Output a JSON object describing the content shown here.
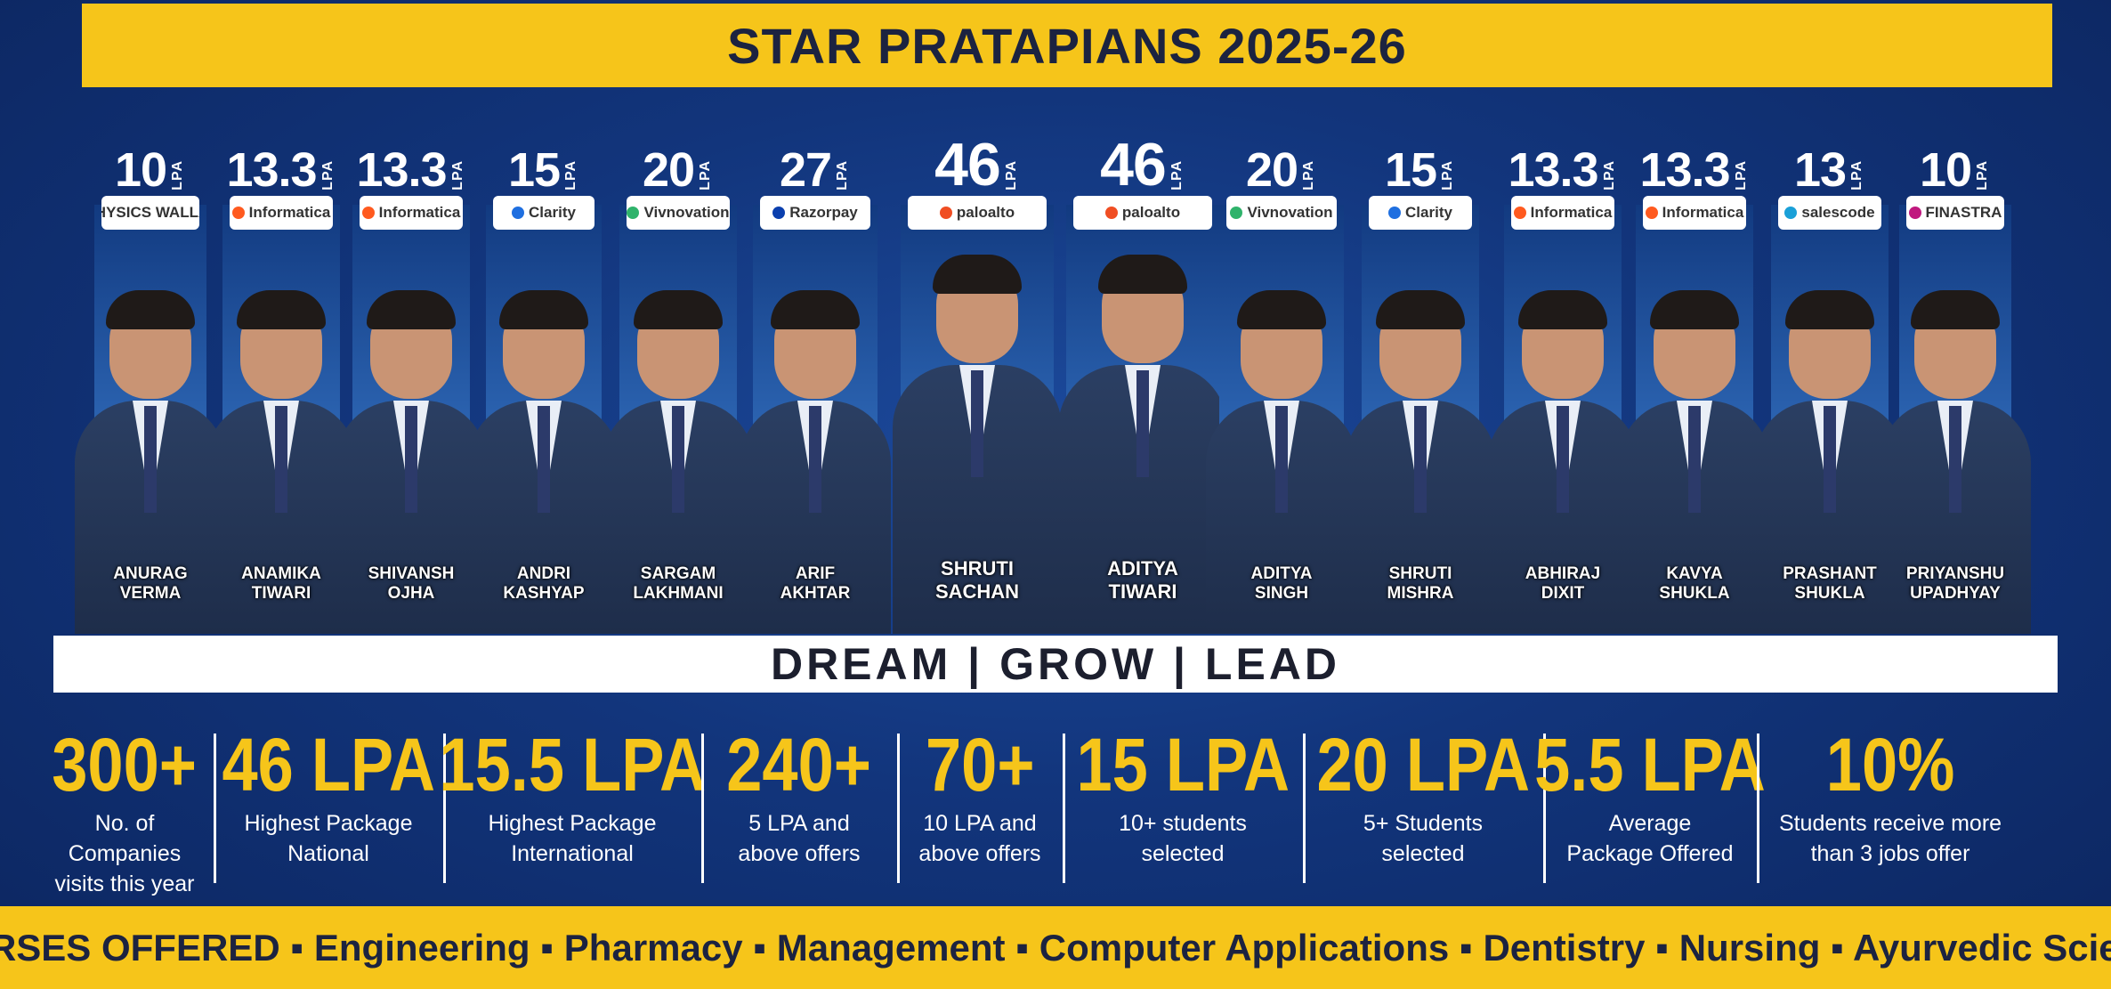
{
  "title": "STAR PRATAPIANS 2025-26",
  "tagline": "DREAM | GROW | LEAD",
  "lpa_unit": "LPA",
  "students": [
    {
      "lpa": "10",
      "company": "PHYSICS WALLAH",
      "logo_color": "#111111",
      "name_line1": "ANURAG",
      "name_line2": "VERMA"
    },
    {
      "lpa": "13.3",
      "company": "Informatica",
      "logo_color": "#ff5a1f",
      "name_line1": "ANAMIKA",
      "name_line2": "TIWARI"
    },
    {
      "lpa": "13.3",
      "company": "Informatica",
      "logo_color": "#ff5a1f",
      "name_line1": "SHIVANSH",
      "name_line2": "OJHA"
    },
    {
      "lpa": "15",
      "company": "Clarity",
      "logo_color": "#1f6fe0",
      "name_line1": "ANDRI",
      "name_line2": "KASHYAP"
    },
    {
      "lpa": "20",
      "company": "Vivnovation",
      "logo_color": "#2fb36b",
      "name_line1": "SARGAM",
      "name_line2": "LAKHMANI"
    },
    {
      "lpa": "27",
      "company": "Razorpay",
      "logo_color": "#0b3fae",
      "name_line1": "ARIF",
      "name_line2": "AKHTAR"
    },
    {
      "lpa": "46",
      "company": "paloalto",
      "logo_color": "#f04e23",
      "name_line1": "SHRUTI",
      "name_line2": "SACHAN"
    },
    {
      "lpa": "46",
      "company": "paloalto",
      "logo_color": "#f04e23",
      "name_line1": "ADITYA",
      "name_line2": "TIWARI"
    },
    {
      "lpa": "20",
      "company": "Vivnovation",
      "logo_color": "#2fb36b",
      "name_line1": "ADITYA",
      "name_line2": "SINGH"
    },
    {
      "lpa": "15",
      "company": "Clarity",
      "logo_color": "#1f6fe0",
      "name_line1": "SHRUTI",
      "name_line2": "MISHRA"
    },
    {
      "lpa": "13.3",
      "company": "Informatica",
      "logo_color": "#ff5a1f",
      "name_line1": "ABHIRAJ",
      "name_line2": "DIXIT"
    },
    {
      "lpa": "13.3",
      "company": "Informatica",
      "logo_color": "#ff5a1f",
      "name_line1": "KAVYA",
      "name_line2": "SHUKLA"
    },
    {
      "lpa": "13",
      "company": "salescode",
      "logo_color": "#1aa0d8",
      "name_line1": "PRASHANT",
      "name_line2": "SHUKLA"
    },
    {
      "lpa": "10",
      "company": "FINASTRA",
      "logo_color": "#c0187e",
      "name_line1": "PRIYANSHU",
      "name_line2": "UPADHYAY"
    }
  ],
  "stats": [
    {
      "value": "300+",
      "label_line1": "No. of Companies",
      "label_line2": "visits this year"
    },
    {
      "value": "46 LPA",
      "label_line1": "Highest Package",
      "label_line2": "National"
    },
    {
      "value": "15.5 LPA",
      "label_line1": "Highest Package",
      "label_line2": "International"
    },
    {
      "value": "240+",
      "label_line1": "5 LPA and",
      "label_line2": "above offers"
    },
    {
      "value": "70+",
      "label_line1": "10 LPA and",
      "label_line2": "above offers"
    },
    {
      "value": "15 LPA",
      "label_line1": "10+ students",
      "label_line2": "selected"
    },
    {
      "value": "20 LPA",
      "label_line1": "5+ Students",
      "label_line2": "selected"
    },
    {
      "value": "5.5 LPA",
      "label_line1": "Average",
      "label_line2": "Package Offered"
    },
    {
      "value": "10%",
      "label_line1": "Students receive more",
      "label_line2": "than 3 jobs offer"
    }
  ],
  "footer": "COURSES OFFERED ▪ Engineering ▪  Pharmacy ▪ Management ▪ Computer Applications ▪ Dentistry ▪ Nursing ▪ Ayurvedic Sciences",
  "colors": {
    "accent_yellow": "#f6c51a",
    "navy": "#12357c"
  }
}
